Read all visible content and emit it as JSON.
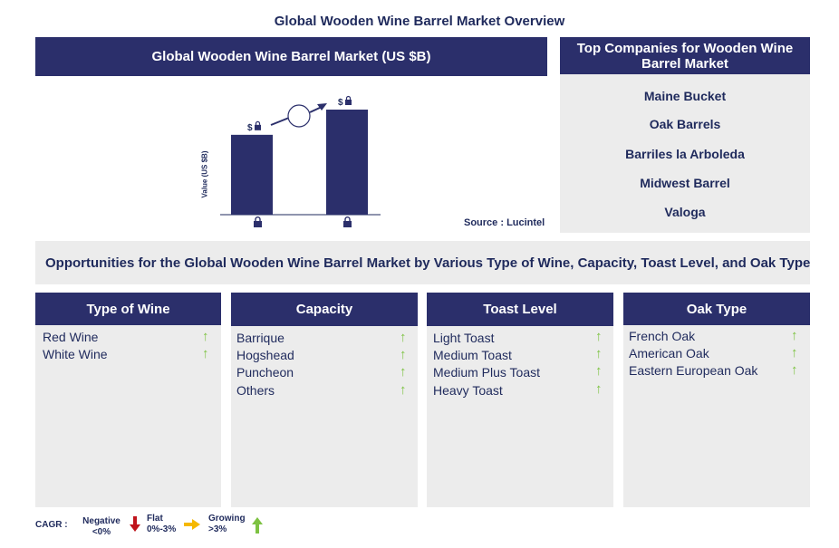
{
  "page_title": "Global Wooden Wine Barrel Market Overview",
  "chart_panel": {
    "header": "Global Wooden Wine Barrel Market (US $B)",
    "ylabel": "Value (US $B)",
    "bar_value_symbol": "$",
    "lock_icon": "lock-icon",
    "source": "Source : Lucintel"
  },
  "chart_data": {
    "type": "bar",
    "title": "Global Wooden Wine Barrel Market (US $B)",
    "ylabel": "Value (US $B)",
    "categories": [
      "",
      ""
    ],
    "values": [
      0.76,
      1.0
    ],
    "note": "Bar values and category labels are hidden (locked); heights read as relative proportions.",
    "growth_arrow": true
  },
  "companies_panel": {
    "header": "Top Companies for Wooden Wine Barrel Market",
    "items": [
      "Maine Bucket",
      "Oak Barrels",
      "Barriles la Arboleda",
      "Midwest Barrel",
      "Valoga"
    ]
  },
  "opportunities": {
    "title": "Opportunities for the Global Wooden Wine Barrel Market by Various Type of Wine, Capacity, Toast Level, and Oak Type"
  },
  "segments": [
    {
      "title": "Type of Wine",
      "items": [
        "Red Wine",
        "White Wine"
      ]
    },
    {
      "title": "Capacity",
      "items": [
        "Barrique",
        "Hogshead",
        "Puncheon",
        "Others"
      ]
    },
    {
      "title": "Toast Level",
      "items": [
        "Light Toast",
        "Medium Toast",
        "Medium Plus Toast",
        "Heavy Toast"
      ]
    },
    {
      "title": "Oak Type",
      "items": [
        "French Oak",
        "American Oak",
        "Eastern European Oak"
      ]
    }
  ],
  "trend_symbol": "↑",
  "legend": {
    "label": "CAGR :",
    "negative": {
      "name": "Negative",
      "range": "<0%",
      "color": "#c0141c"
    },
    "flat": {
      "name": "Flat",
      "range": "0%-3%",
      "color": "#f5b800"
    },
    "growing": {
      "name": "Growing",
      "range": ">3%",
      "color": "#7dc242"
    }
  },
  "colors": {
    "navy": "#2b2f6b",
    "panel_grey": "#ececec",
    "text": "#1f2a5c",
    "growth_green": "#7dc242"
  }
}
